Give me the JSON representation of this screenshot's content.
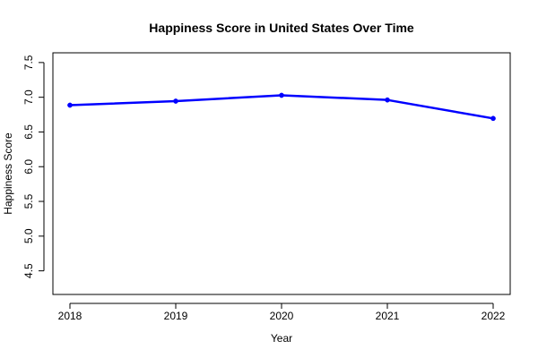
{
  "chart_data": {
    "type": "line",
    "title": "Happiness Score in United States Over Time",
    "xlabel": "Year",
    "ylabel": "Happiness Score",
    "x": [
      "2018",
      "2019",
      "2020",
      "2021",
      "2022"
    ],
    "series": [
      {
        "values": [
          6.886,
          6.944,
          7.028,
          6.961,
          6.695
        ],
        "color": "#0000ff"
      }
    ],
    "ylim": [
      4.16,
      7.64
    ],
    "yticks": [
      "4.5",
      "5.0",
      "5.5",
      "6.0",
      "6.5",
      "7.0",
      "7.5"
    ],
    "grid": false,
    "legend": "none",
    "point_markers": true
  }
}
